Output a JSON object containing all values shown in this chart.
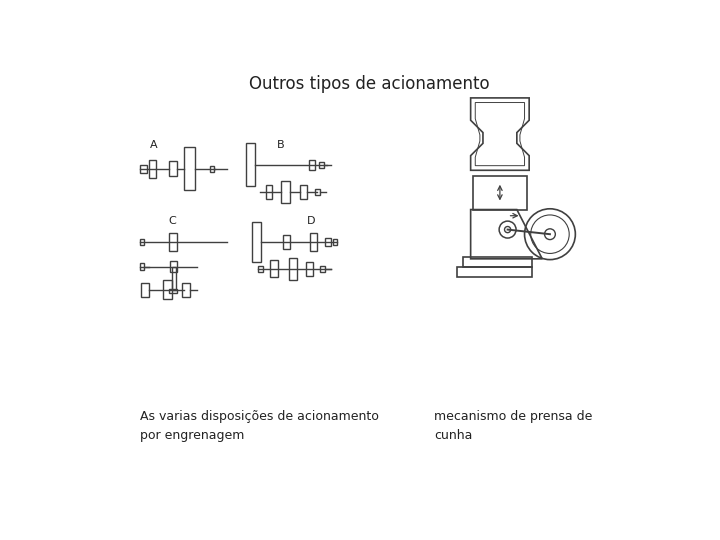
{
  "title": "Outros tipos de acionamento",
  "caption_left": "As varias disposições de acionamento\npor engrenagem",
  "caption_right": "mecanismo de prensa de\ncunha",
  "bg_color": "#ffffff",
  "line_color": "#404040",
  "title_fontsize": 12,
  "caption_fontsize": 9,
  "label_A": "A",
  "label_B": "B",
  "label_C": "C",
  "label_D": "D"
}
